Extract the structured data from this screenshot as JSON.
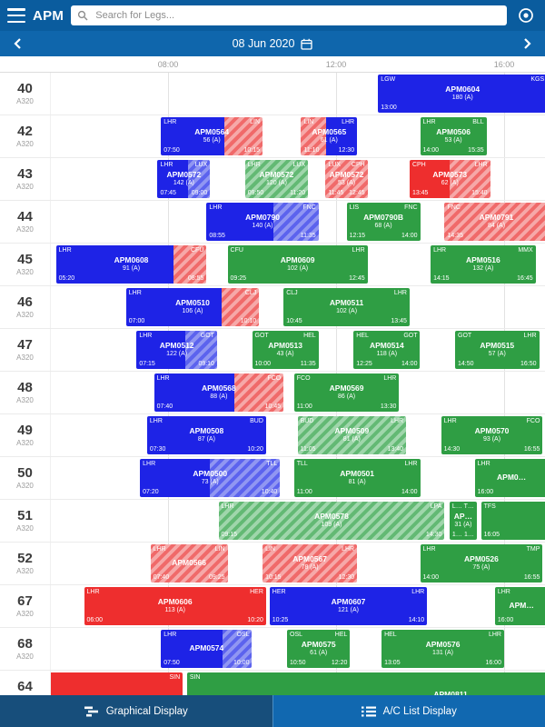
{
  "app": {
    "title": "APM"
  },
  "search": {
    "placeholder": "Search for Legs..."
  },
  "date_nav": {
    "date": "08 Jun 2020"
  },
  "timeline": {
    "ticks": [
      {
        "label": "08:00",
        "hour": 8
      },
      {
        "label": "12:00",
        "hour": 12
      },
      {
        "label": "16:00",
        "hour": 16
      }
    ]
  },
  "tabs": {
    "graphical": "Graphical Display",
    "list": "A/C List Display"
  },
  "colors": {
    "topbar": "#0a5c9e",
    "datebar": "#0f66ac",
    "block_blue": "#1e23e6",
    "block_red": "#ee2e2e",
    "block_green": "#2f9e44",
    "tab_active": "#174e7b",
    "tab_inactive": "#1168b0"
  },
  "rows": [
    {
      "id": "40",
      "type": "A320"
    },
    {
      "id": "42",
      "type": "A320"
    },
    {
      "id": "43",
      "type": "A320"
    },
    {
      "id": "44",
      "type": "A320"
    },
    {
      "id": "45",
      "type": "A320"
    },
    {
      "id": "46",
      "type": "A320"
    },
    {
      "id": "47",
      "type": "A320"
    },
    {
      "id": "48",
      "type": "A320"
    },
    {
      "id": "49",
      "type": "A320"
    },
    {
      "id": "50",
      "type": "A320"
    },
    {
      "id": "51",
      "type": "A320"
    },
    {
      "id": "52",
      "type": "A320"
    },
    {
      "id": "67",
      "type": "A320"
    },
    {
      "id": "68",
      "type": "A320"
    },
    {
      "id": "64",
      "type": "A320"
    }
  ],
  "flights": [
    {
      "row": "40",
      "flight": "APM0604",
      "from": "LGW",
      "to": "KGS",
      "dep": "13:00",
      "arr": "",
      "pax": "180 (A)",
      "start": 13.0,
      "end": 17.02,
      "c1": "blue"
    },
    {
      "row": "42",
      "flight": "APM0564",
      "from": "LHR",
      "to": "LIN",
      "dep": "07:50",
      "arr": "10:15",
      "pax": "56 (A)",
      "start": 7.833,
      "end": 10.25,
      "c1": "blue",
      "c2": "red-hatch",
      "split": 0.62
    },
    {
      "row": "42",
      "flight": "APM0565",
      "from": "LIN",
      "to": "LHR",
      "dep": "11:10",
      "arr": "12:30",
      "pax": "61 (A)",
      "start": 11.167,
      "end": 12.5,
      "c1": "red-hatch",
      "c2": "blue",
      "split": 0.45
    },
    {
      "row": "42",
      "flight": "APM0506",
      "from": "LHR",
      "to": "BLL",
      "dep": "14:00",
      "arr": "15:35",
      "pax": "53 (A)",
      "start": 14.0,
      "end": 15.583,
      "c1": "green"
    },
    {
      "row": "43",
      "flight": "APM0572",
      "from": "LHR",
      "to": "LUX",
      "dep": "07:45",
      "arr": "09:00",
      "pax": "142 (A)",
      "start": 7.75,
      "end": 9.0,
      "c1": "blue",
      "c2": "blue-hatch",
      "split": 0.58
    },
    {
      "row": "43",
      "flight": "APM0572",
      "from": "LHR",
      "to": "LUX",
      "dep": "09:50",
      "arr": "11:20",
      "pax": "120 (A)",
      "start": 9.833,
      "end": 11.333,
      "c1": "green-hatch"
    },
    {
      "row": "43",
      "flight": "APM0572",
      "from": "LUX",
      "to": "CPH",
      "dep": "11:45",
      "arr": "12:45",
      "pax": "53 (A)",
      "start": 11.75,
      "end": 12.75,
      "c1": "red-hatch"
    },
    {
      "row": "43",
      "flight": "APM0573",
      "from": "CPH",
      "to": "LHR",
      "dep": "13:45",
      "arr": "15:40",
      "pax": "62 (A)",
      "start": 13.75,
      "end": 15.667,
      "c1": "red",
      "c2": "red-hatch",
      "split": 0.5
    },
    {
      "row": "44",
      "flight": "APM0790",
      "from": "LHR",
      "to": "FNC",
      "dep": "08:55",
      "arr": "11:35",
      "pax": "140 (A)",
      "start": 8.917,
      "end": 11.583,
      "c1": "blue",
      "c2": "blue-hatch",
      "split": 0.6
    },
    {
      "row": "44",
      "flight": "APM0790B",
      "from": "LIS",
      "to": "FNC",
      "dep": "12:15",
      "arr": "14:00",
      "pax": "68 (A)",
      "start": 12.25,
      "end": 14.0,
      "c1": "green"
    },
    {
      "row": "44",
      "flight": "APM0791",
      "from": "FNC",
      "to": "",
      "dep": "14:35",
      "arr": "",
      "pax": "84 (A)",
      "start": 14.583,
      "end": 17.05,
      "c1": "red-hatch"
    },
    {
      "row": "45",
      "flight": "APM0608",
      "from": "LHR",
      "to": "CFU",
      "dep": "05:20",
      "arr": "08:55",
      "pax": "91 (A)",
      "start": 5.333,
      "end": 8.917,
      "c1": "blue",
      "c2": "red-hatch",
      "split": 0.78
    },
    {
      "row": "45",
      "flight": "APM0609",
      "from": "CFU",
      "to": "LHR",
      "dep": "09:25",
      "arr": "12:45",
      "pax": "102 (A)",
      "start": 9.417,
      "end": 12.75,
      "c1": "green"
    },
    {
      "row": "45",
      "flight": "APM0516",
      "from": "LHR",
      "to": "MMX",
      "dep": "14:15",
      "arr": "16:45",
      "pax": "132 (A)",
      "start": 14.25,
      "end": 16.75,
      "c1": "green"
    },
    {
      "row": "46",
      "flight": "APM0510",
      "from": "LHR",
      "to": "CLJ",
      "dep": "07:00",
      "arr": "10:10",
      "pax": "106 (A)",
      "start": 7.0,
      "end": 10.167,
      "c1": "blue",
      "c2": "red-hatch",
      "split": 0.72
    },
    {
      "row": "46",
      "flight": "APM0511",
      "from": "CLJ",
      "to": "LHR",
      "dep": "10:45",
      "arr": "13:45",
      "pax": "102 (A)",
      "start": 10.75,
      "end": 13.75,
      "c1": "green"
    },
    {
      "row": "47",
      "flight": "APM0512",
      "from": "LHR",
      "to": "GOT",
      "dep": "07:15",
      "arr": "09:10",
      "pax": "122 (A)",
      "start": 7.25,
      "end": 9.167,
      "c1": "blue",
      "c2": "blue-hatch",
      "split": 0.6
    },
    {
      "row": "47",
      "flight": "APM0513",
      "from": "GOT",
      "to": "HEL",
      "dep": "10:00",
      "arr": "11:35",
      "pax": "43 (A)",
      "start": 10.0,
      "end": 11.583,
      "c1": "green"
    },
    {
      "row": "47",
      "flight": "APM0514",
      "from": "HEL",
      "to": "GOT",
      "dep": "12:25",
      "arr": "14:00",
      "pax": "118 (A)",
      "start": 12.417,
      "end": 14.0,
      "c1": "green"
    },
    {
      "row": "47",
      "flight": "APM0515",
      "from": "GOT",
      "to": "LHR",
      "dep": "14:50",
      "arr": "16:50",
      "pax": "57 (A)",
      "start": 14.833,
      "end": 16.833,
      "c1": "green"
    },
    {
      "row": "48",
      "flight": "APM0568",
      "from": "LHR",
      "to": "FCO",
      "dep": "07:40",
      "arr": "10:45",
      "pax": "88 (A)",
      "start": 7.667,
      "end": 10.75,
      "c1": "blue",
      "c2": "red-hatch",
      "split": 0.62
    },
    {
      "row": "48",
      "flight": "APM0569",
      "from": "FCO",
      "to": "LHR",
      "dep": "11:00",
      "arr": "13:30",
      "pax": "86 (A)",
      "start": 11.0,
      "end": 13.5,
      "c1": "green"
    },
    {
      "row": "49",
      "flight": "APM0508",
      "from": "LHR",
      "to": "BUD",
      "dep": "07:30",
      "arr": "10:20",
      "pax": "87 (A)",
      "start": 7.5,
      "end": 10.333,
      "c1": "blue"
    },
    {
      "row": "49",
      "flight": "APM0509",
      "from": "BUD",
      "to": "LHR",
      "dep": "11:05",
      "arr": "13:40",
      "pax": "81 (A)",
      "start": 11.083,
      "end": 13.667,
      "c1": "green-hatch"
    },
    {
      "row": "49",
      "flight": "APM0570",
      "from": "LHR",
      "to": "FCO",
      "dep": "14:30",
      "arr": "16:55",
      "pax": "93 (A)",
      "start": 14.5,
      "end": 16.917,
      "c1": "green"
    },
    {
      "row": "50",
      "flight": "APM0500",
      "from": "LHR",
      "to": "TLL",
      "dep": "07:20",
      "arr": "10:40",
      "pax": "73 (A)",
      "start": 7.333,
      "end": 10.667,
      "c1": "blue",
      "c2": "blue-hatch",
      "split": 0.5
    },
    {
      "row": "50",
      "flight": "APM0501",
      "from": "TLL",
      "to": "LHR",
      "dep": "11:00",
      "arr": "14:00",
      "pax": "81 (A)",
      "start": 11.0,
      "end": 14.0,
      "c1": "green"
    },
    {
      "row": "50",
      "flight": "APM0…",
      "from": "LHR",
      "to": "",
      "dep": "16:00",
      "arr": "",
      "pax": "",
      "start": 15.3,
      "end": 17.05,
      "c1": "green"
    },
    {
      "row": "51",
      "flight": "APM0578",
      "from": "LHR",
      "to": "LPA",
      "dep": "09:15",
      "arr": "14:30",
      "pax": "109 (A)",
      "start": 9.2,
      "end": 14.583,
      "c1": "green-hatch"
    },
    {
      "row": "51",
      "flight": "AP…",
      "from": "L…",
      "to": "T…",
      "dep": "1…",
      "arr": "1…",
      "pax": "31 (A)",
      "start": 14.7,
      "end": 15.35,
      "c1": "green"
    },
    {
      "row": "51",
      "flight": "",
      "from": "TFS",
      "to": "",
      "dep": "16:05",
      "arr": "",
      "pax": "",
      "start": 15.45,
      "end": 17.05,
      "c1": "green"
    },
    {
      "row": "52",
      "flight": "APM0566",
      "from": "LHR",
      "to": "LIN",
      "dep": "07:40",
      "arr": "09:25",
      "pax": "",
      "start": 7.583,
      "end": 9.417,
      "c1": "red-hatch"
    },
    {
      "row": "52",
      "flight": "APM0567",
      "from": "LIN",
      "to": "LHR",
      "dep": "10:15",
      "arr": "12:30",
      "pax": "78 (A)",
      "start": 10.25,
      "end": 12.5,
      "c1": "red-hatch"
    },
    {
      "row": "52",
      "flight": "APM0526",
      "from": "LHR",
      "to": "TMP",
      "dep": "14:00",
      "arr": "16:55",
      "pax": "75 (A)",
      "start": 14.0,
      "end": 16.917,
      "c1": "green"
    },
    {
      "row": "67",
      "flight": "APM0606",
      "from": "LHR",
      "to": "HER",
      "dep": "06:00",
      "arr": "10:20",
      "pax": "113 (A)",
      "start": 6.0,
      "end": 10.333,
      "c1": "red"
    },
    {
      "row": "67",
      "flight": "APM0607",
      "from": "HER",
      "to": "LHR",
      "dep": "10:25",
      "arr": "14:10",
      "pax": "121 (A)",
      "start": 10.417,
      "end": 14.167,
      "c1": "blue"
    },
    {
      "row": "67",
      "flight": "APM…",
      "from": "LHR",
      "to": "",
      "dep": "16:00",
      "arr": "",
      "pax": "",
      "start": 15.78,
      "end": 17.05,
      "c1": "green"
    },
    {
      "row": "68",
      "flight": "APM0574",
      "from": "LHR",
      "to": "OSL",
      "dep": "07:50",
      "arr": "10:00",
      "pax": "",
      "start": 7.833,
      "end": 10.0,
      "c1": "blue",
      "c2": "blue-hatch",
      "split": 0.68
    },
    {
      "row": "68",
      "flight": "APM0575",
      "from": "OSL",
      "to": "HEL",
      "dep": "10:50",
      "arr": "12:20",
      "pax": "61 (A)",
      "start": 10.833,
      "end": 12.333,
      "c1": "green"
    },
    {
      "row": "68",
      "flight": "APM0576",
      "from": "HEL",
      "to": "LHR",
      "dep": "13:05",
      "arr": "16:00",
      "pax": "131 (A)",
      "start": 13.083,
      "end": 16.0,
      "c1": "green"
    },
    {
      "row": "64",
      "flight": "",
      "from": "",
      "to": "SIN",
      "dep": "",
      "arr": "",
      "pax": "",
      "start": 4.5,
      "end": 8.35,
      "c1": "red"
    },
    {
      "row": "64",
      "flight": "APM0811",
      "from": "SIN",
      "to": "",
      "dep": "",
      "arr": "",
      "pax": "",
      "start": 8.45,
      "end": 21.0,
      "c1": "green"
    }
  ]
}
